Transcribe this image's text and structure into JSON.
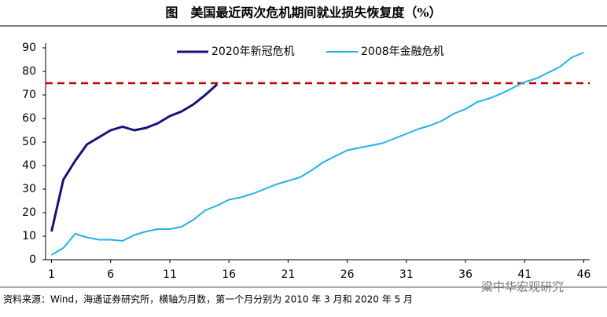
{
  "chart_data": {
    "type": "line",
    "title": "图　美国最近两次危机期间就业损失恢复度（%）",
    "source": "资料来源：Wind，海通证券研究所，横轴为月数，第一个月分别为 2010 年 3 月和 2020 年 5 月",
    "watermark": "粱中华宏观研究",
    "xlim": [
      0.5,
      46.5
    ],
    "xticks": [
      1,
      6,
      11,
      16,
      21,
      26,
      31,
      36,
      41,
      46
    ],
    "ylim": [
      0,
      90
    ],
    "yticks": [
      0,
      10,
      20,
      30,
      40,
      50,
      60,
      70,
      80,
      90
    ],
    "legend": "top",
    "reference_line": {
      "value": 75,
      "color": "#c00000"
    },
    "series": [
      {
        "name": "2020年新冠危机",
        "color": "#13137a",
        "x": [
          1,
          2,
          3,
          4,
          5,
          6,
          7,
          8,
          9,
          10,
          11,
          12,
          13,
          14,
          15
        ],
        "values": [
          12,
          34,
          42,
          49,
          52,
          55,
          56.5,
          55,
          56,
          58,
          61,
          63,
          66,
          70,
          74.5
        ]
      },
      {
        "name": "2008年金融危机",
        "color": "#21b2e6",
        "x": [
          1,
          2,
          3,
          4,
          5,
          6,
          7,
          8,
          9,
          10,
          11,
          12,
          13,
          14,
          15,
          16,
          17,
          18,
          19,
          20,
          21,
          22,
          23,
          24,
          25,
          26,
          27,
          28,
          29,
          30,
          31,
          32,
          33,
          34,
          35,
          36,
          37,
          38,
          39,
          40,
          41,
          42,
          43,
          44,
          45,
          46
        ],
        "values": [
          2,
          5,
          11,
          9.5,
          8.5,
          8.5,
          8,
          10.5,
          12,
          13,
          13,
          14,
          17,
          21,
          23,
          25.5,
          26.5,
          28,
          30,
          32,
          33.5,
          35,
          38,
          41.5,
          44,
          46.5,
          47.5,
          48.5,
          49.5,
          51.5,
          53.5,
          55.5,
          57,
          59,
          62,
          64,
          67,
          68.5,
          70.5,
          73,
          75.5,
          77,
          79.5,
          82,
          86,
          88
        ]
      }
    ]
  }
}
